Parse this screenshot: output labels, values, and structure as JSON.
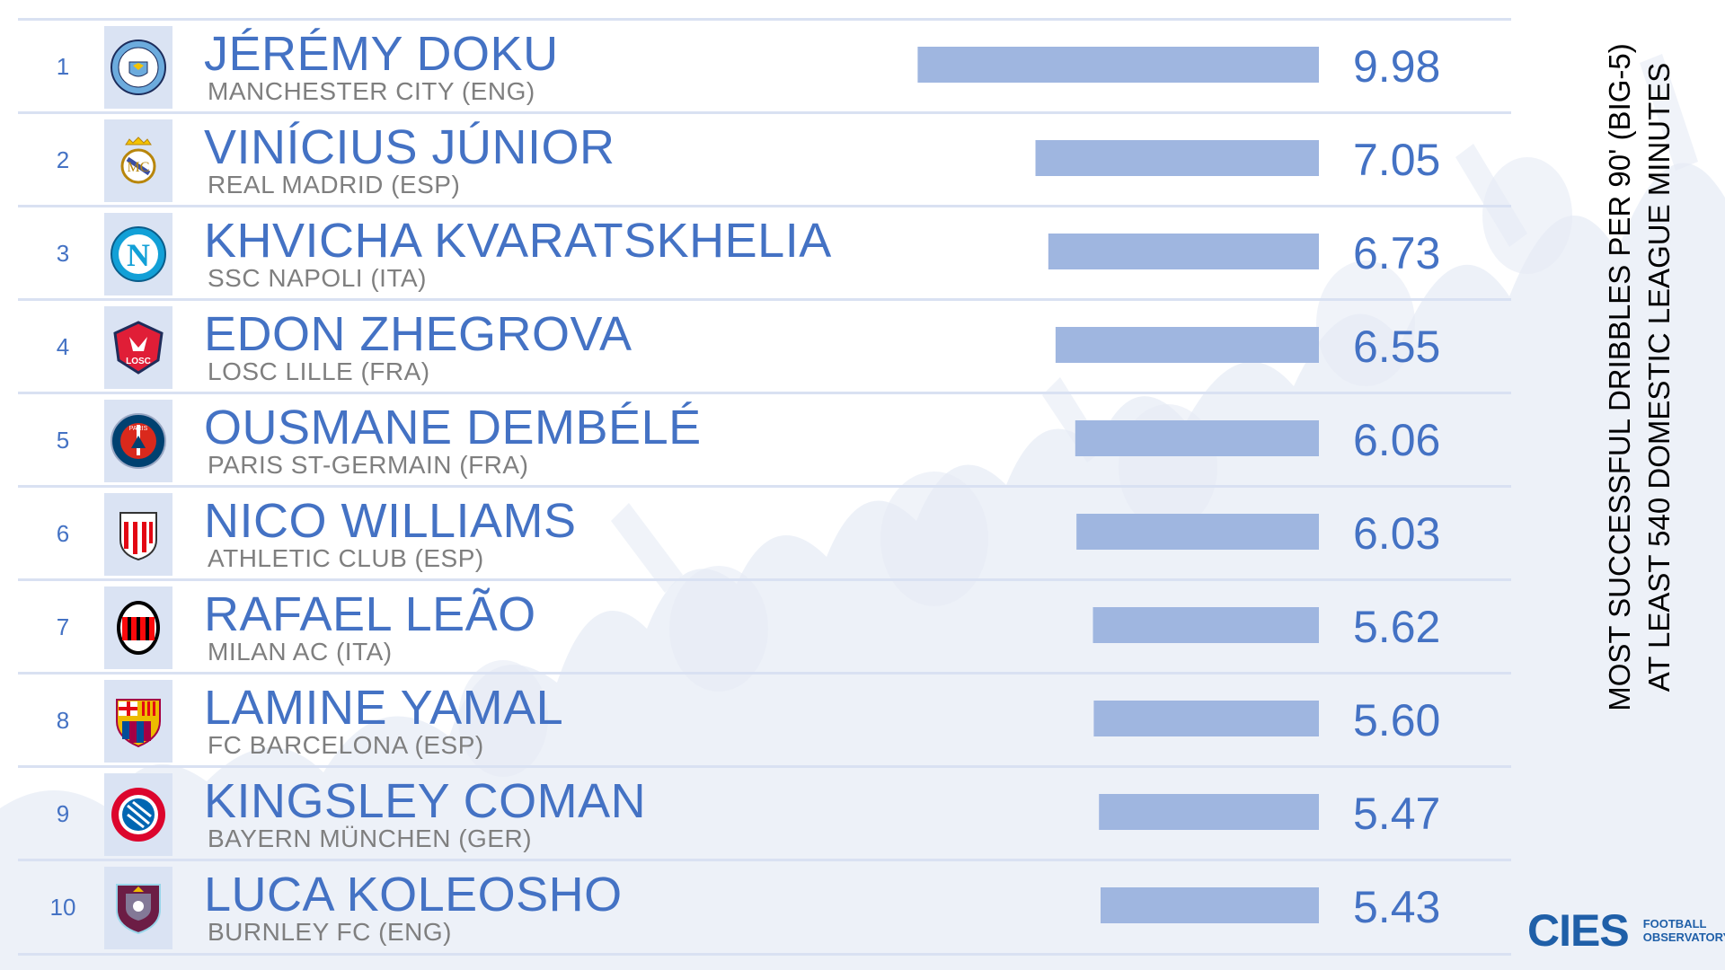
{
  "chart_data": {
    "type": "bar",
    "orientation": "horizontal",
    "title": "MOST SUCCESSFUL DRIBBLES PER 90' (BIG-5)",
    "subtitle": "AT LEAST 540 DOMESTIC LEAGUE MINUTES",
    "xlim": [
      0,
      10
    ],
    "grid": false,
    "legend": "none",
    "rows": [
      {
        "rank": "1",
        "player": "JÉRÉMY DOKU",
        "club": "MANCHESTER CITY (ENG)",
        "value": 9.98,
        "label": "9.98",
        "logo": "manchester-city-crest"
      },
      {
        "rank": "2",
        "player": "VINÍCIUS JÚNIOR",
        "club": "REAL MADRID (ESP)",
        "value": 7.05,
        "label": "7.05",
        "logo": "real-madrid-crest"
      },
      {
        "rank": "3",
        "player": "KHVICHA KVARATSKHELIA",
        "club": "SSC NAPOLI (ITA)",
        "value": 6.73,
        "label": "6.73",
        "logo": "napoli-crest"
      },
      {
        "rank": "4",
        "player": "EDON ZHEGROVA",
        "club": "LOSC LILLE (FRA)",
        "value": 6.55,
        "label": "6.55",
        "logo": "lille-crest"
      },
      {
        "rank": "5",
        "player": "OUSMANE DEMBÉLÉ",
        "club": "PARIS ST-GERMAIN (FRA)",
        "value": 6.06,
        "label": "6.06",
        "logo": "psg-crest"
      },
      {
        "rank": "6",
        "player": "NICO WILLIAMS",
        "club": "ATHLETIC CLUB (ESP)",
        "value": 6.03,
        "label": "6.03",
        "logo": "athletic-club-crest"
      },
      {
        "rank": "7",
        "player": "RAFAEL LEÃO",
        "club": "MILAN AC (ITA)",
        "value": 5.62,
        "label": "5.62",
        "logo": "ac-milan-crest"
      },
      {
        "rank": "8",
        "player": "LAMINE YAMAL",
        "club": "FC BARCELONA (ESP)",
        "value": 5.6,
        "label": "5.60",
        "logo": "barcelona-crest"
      },
      {
        "rank": "9",
        "player": "KINGSLEY COMAN",
        "club": "BAYERN MÜNCHEN (GER)",
        "value": 5.47,
        "label": "5.47",
        "logo": "bayern-crest"
      },
      {
        "rank": "10",
        "player": "LUCA KOLEOSHO",
        "club": "BURNLEY FC (ENG)",
        "value": 5.43,
        "label": "5.43",
        "logo": "burnley-crest"
      }
    ],
    "colors": {
      "bar": "#9fb6e0",
      "player": "#4472c4",
      "club": "#7f7f7f",
      "logo_bg": "#dae3f3",
      "divider": "#d9e1f2"
    }
  },
  "branding": {
    "logo_text": "CIES",
    "sub_line1": "FOOTBALL",
    "sub_line2": "OBSERVATORY"
  }
}
